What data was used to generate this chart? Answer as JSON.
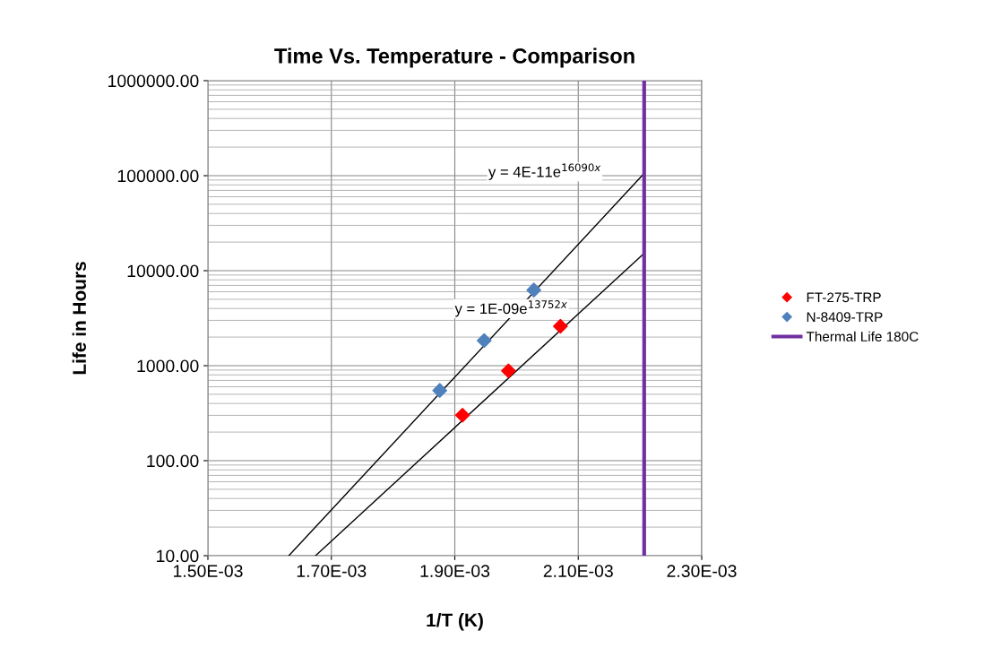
{
  "chart_data": {
    "type": "scatter",
    "title": "Time Vs. Temperature - Comparison",
    "xlabel": "1/T (K)",
    "ylabel": "Life in Hours",
    "series": [
      {
        "name": "FT-275-TRP",
        "color": "#ff0000",
        "marker": "diamond",
        "x": [
          0.0019124,
          0.0019869,
          0.0020711
        ],
        "values": [
          301,
          883,
          2600
        ]
      },
      {
        "name": "N-8409-TRP",
        "color": "#4f81bd",
        "marker": "diamond",
        "x": [
          0.0018756,
          0.0019476,
          0.002028
        ],
        "values": [
          548,
          1837,
          6240
        ]
      },
      {
        "type": "line",
        "color": "#000000",
        "x": [
          0.0016744,
          0.002207
        ],
        "values": [
          10,
          15300
        ]
      },
      {
        "type": "line",
        "color": "#000000",
        "x": [
          0.0016311,
          0.002207
        ],
        "values": [
          10,
          106000
        ]
      },
      {
        "type": "line",
        "name": "Thermal Life 180C",
        "color": "#7030a0",
        "x": [
          0.0022068,
          0.0022068
        ],
        "values": [
          10,
          1000000
        ]
      }
    ],
    "annotations": [
      "y = 4E-11e$^{16090x}$",
      "y = 1E-09e$^{13752x}$"
    ],
    "log": "y",
    "grid": true,
    "legend": "right",
    "xlim": [
      0.0015,
      0.0023
    ],
    "xticks": [
      {
        "value": 0.0015,
        "label": "1.50E-03"
      },
      {
        "value": 0.0017,
        "label": "1.70E-03"
      },
      {
        "value": 0.0019,
        "label": "1.90E-03"
      },
      {
        "value": 0.0021,
        "label": "2.10E-03"
      },
      {
        "value": 0.0023,
        "label": "2.30E-03"
      }
    ],
    "ylim": [
      10,
      1000000
    ],
    "yticks": [
      {
        "value": 10,
        "label": "10.00"
      },
      {
        "value": 100,
        "label": "100.00"
      },
      {
        "value": 1000,
        "label": "1000.00"
      },
      {
        "value": 10000,
        "label": "10000.00"
      },
      {
        "value": 100000,
        "label": "100000.00"
      },
      {
        "value": 1000000,
        "label": "1000000.00"
      }
    ]
  }
}
